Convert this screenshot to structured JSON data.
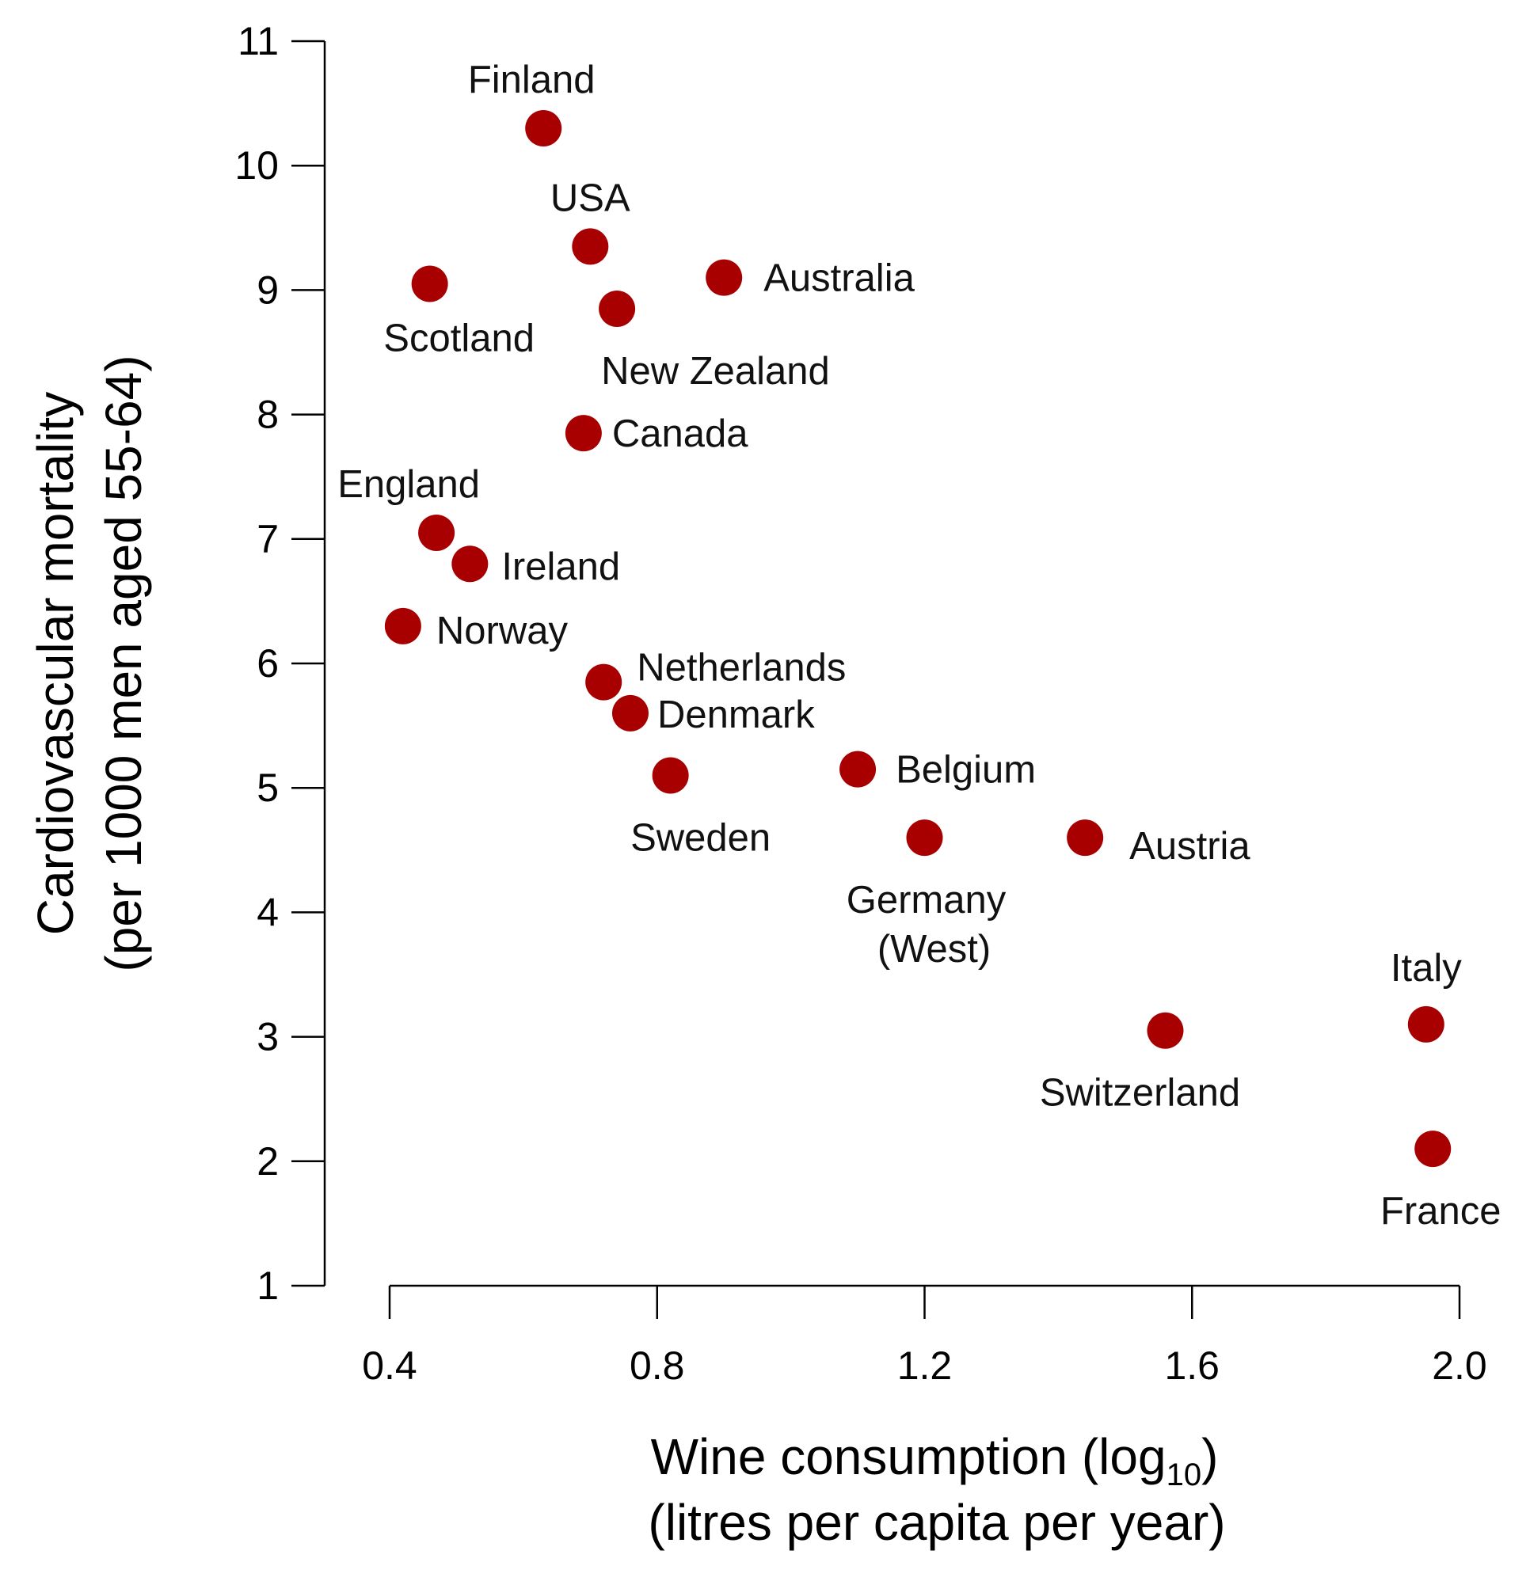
{
  "chart_data": {
    "type": "scatter",
    "title": "",
    "xlabel": "Wine consumption (log",
    "xlabel_sub": "10",
    "xlabel_suffix": ")",
    "xlabel_line2": "(litres per capita per year)",
    "ylabel": "Cardiovascular mortality",
    "ylabel_line2": "(per 1000 men aged 55-64)",
    "xlim": [
      0.4,
      2.0
    ],
    "ylim": [
      1,
      11
    ],
    "x_ticks": [
      "0.4",
      "0.8",
      "1.2",
      "1.6",
      "2.0"
    ],
    "y_ticks": [
      "1",
      "2",
      "3",
      "4",
      "5",
      "6",
      "7",
      "8",
      "9",
      "10",
      "11"
    ],
    "grid": false,
    "legend": "none",
    "marker_color": "#a80000",
    "series": [
      {
        "points": [
          {
            "label": "Finland",
            "x": 0.63,
            "y": 10.3
          },
          {
            "label": "USA",
            "x": 0.7,
            "y": 9.35
          },
          {
            "label": "Scotland",
            "x": 0.46,
            "y": 9.05
          },
          {
            "label": "Australia",
            "x": 0.9,
            "y": 9.1
          },
          {
            "label": "New Zealand",
            "x": 0.74,
            "y": 8.85
          },
          {
            "label": "Canada",
            "x": 0.69,
            "y": 7.85
          },
          {
            "label": "England",
            "x": 0.47,
            "y": 7.05
          },
          {
            "label": "Ireland",
            "x": 0.52,
            "y": 6.8
          },
          {
            "label": "Norway",
            "x": 0.42,
            "y": 6.3
          },
          {
            "label": "Netherlands",
            "x": 0.72,
            "y": 5.85
          },
          {
            "label": "Denmark",
            "x": 0.76,
            "y": 5.6
          },
          {
            "label": "Sweden",
            "x": 0.82,
            "y": 5.1
          },
          {
            "label": "Belgium",
            "x": 1.1,
            "y": 5.15
          },
          {
            "label": "Germany",
            "label_line2": "(West)",
            "x": 1.2,
            "y": 4.6
          },
          {
            "label": "Austria",
            "x": 1.44,
            "y": 4.6
          },
          {
            "label": "Switzerland",
            "x": 1.56,
            "y": 3.05
          },
          {
            "label": "Italy",
            "x": 1.95,
            "y": 3.1
          },
          {
            "label": "France",
            "x": 1.96,
            "y": 2.1
          }
        ]
      }
    ]
  }
}
